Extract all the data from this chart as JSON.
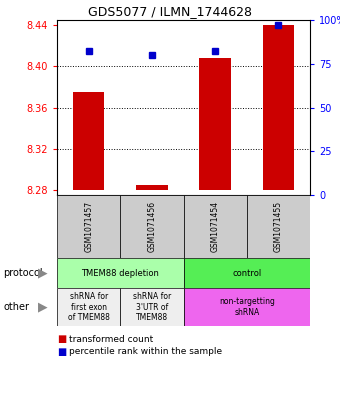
{
  "title": "GDS5077 / ILMN_1744628",
  "samples": [
    "GSM1071457",
    "GSM1071456",
    "GSM1071454",
    "GSM1071455"
  ],
  "bar_bottoms": [
    8.28,
    8.28,
    8.28,
    8.28
  ],
  "bar_tops": [
    8.375,
    8.285,
    8.408,
    8.44
  ],
  "percentile_ranks": [
    82,
    80,
    82,
    97
  ],
  "ylim_min": 8.275,
  "ylim_max": 8.445,
  "yticks_left": [
    8.28,
    8.32,
    8.36,
    8.4,
    8.44
  ],
  "yticks_right_vals": [
    0,
    25,
    50,
    75,
    100
  ],
  "yticks_right_labels": [
    "0",
    "25",
    "50",
    "75",
    "100%"
  ],
  "dotted_lines": [
    8.4,
    8.36,
    8.32
  ],
  "bar_color": "#cc0000",
  "dot_color": "#0000cc",
  "bar_width": 0.5,
  "prot_groups": [
    [
      0,
      2,
      "TMEM88 depletion",
      "#aaffaa"
    ],
    [
      2,
      4,
      "control",
      "#55ee55"
    ]
  ],
  "other_groups": [
    [
      0,
      1,
      "shRNA for\nfirst exon\nof TMEM88",
      "#eeeeee"
    ],
    [
      1,
      2,
      "shRNA for\n3'UTR of\nTMEM88",
      "#eeeeee"
    ],
    [
      2,
      4,
      "non-targetting\nshRNA",
      "#ee66ee"
    ]
  ],
  "legend_items": [
    "transformed count",
    "percentile rank within the sample"
  ],
  "legend_colors": [
    "#cc0000",
    "#0000cc"
  ],
  "sample_box_color": "#cccccc",
  "title_fontsize": 9,
  "tick_fontsize": 7,
  "sample_fontsize": 5.5,
  "label_fontsize": 7,
  "cell_fontsize": 6,
  "legend_fontsize": 6.5
}
